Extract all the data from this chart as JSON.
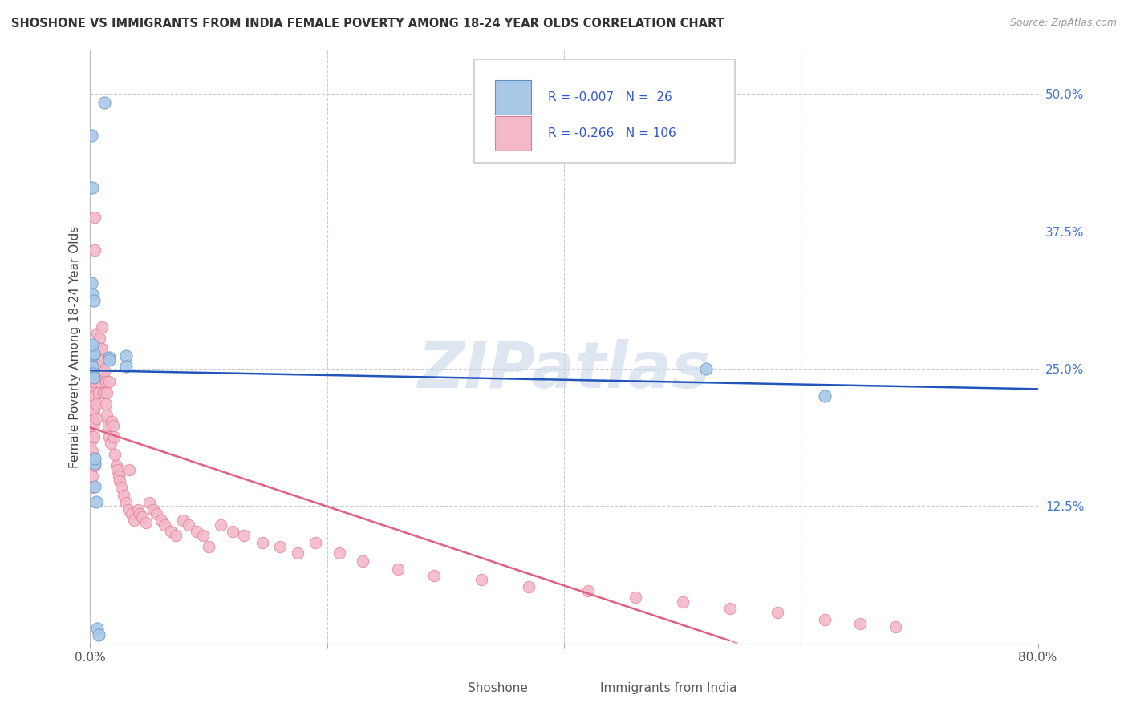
{
  "title": "SHOSHONE VS IMMIGRANTS FROM INDIA FEMALE POVERTY AMONG 18-24 YEAR OLDS CORRELATION CHART",
  "source": "Source: ZipAtlas.com",
  "ylabel": "Female Poverty Among 18-24 Year Olds",
  "xlim": [
    0.0,
    0.8
  ],
  "ylim": [
    0.0,
    0.54
  ],
  "grid_color": "#cccccc",
  "background_color": "#ffffff",
  "shoshone_color": "#a8c8e8",
  "india_color": "#f4b8c8",
  "shoshone_edge": "#6090c0",
  "india_edge": "#e08098",
  "regression_blue": "#2255bb",
  "regression_pink": "#e06080",
  "watermark": "ZIPatlas",
  "watermark_color": "#c8d8e8",
  "legend_text_color": "#3355cc",
  "tick_color": "#4477cc",
  "shoshone_x": [
    0.001,
    0.012,
    0.002,
    0.001,
    0.002,
    0.003,
    0.001,
    0.002,
    0.003,
    0.002,
    0.002,
    0.002,
    0.003,
    0.003,
    0.004,
    0.004,
    0.016,
    0.016,
    0.03,
    0.03,
    0.004,
    0.005,
    0.52,
    0.62,
    0.006,
    0.007
  ],
  "shoshone_y": [
    0.462,
    0.492,
    0.415,
    0.328,
    0.318,
    0.312,
    0.268,
    0.262,
    0.264,
    0.272,
    0.252,
    0.246,
    0.242,
    0.166,
    0.164,
    0.168,
    0.26,
    0.258,
    0.262,
    0.252,
    0.143,
    0.129,
    0.25,
    0.225,
    0.014,
    0.008
  ],
  "india_x": [
    0.001,
    0.001,
    0.001,
    0.001,
    0.001,
    0.001,
    0.002,
    0.002,
    0.002,
    0.002,
    0.002,
    0.002,
    0.002,
    0.002,
    0.002,
    0.002,
    0.003,
    0.003,
    0.003,
    0.003,
    0.003,
    0.004,
    0.004,
    0.004,
    0.004,
    0.005,
    0.005,
    0.005,
    0.005,
    0.006,
    0.006,
    0.006,
    0.007,
    0.007,
    0.008,
    0.008,
    0.008,
    0.009,
    0.009,
    0.01,
    0.01,
    0.01,
    0.011,
    0.011,
    0.012,
    0.012,
    0.013,
    0.013,
    0.014,
    0.014,
    0.015,
    0.016,
    0.016,
    0.017,
    0.018,
    0.019,
    0.02,
    0.021,
    0.022,
    0.023,
    0.024,
    0.025,
    0.026,
    0.028,
    0.03,
    0.032,
    0.033,
    0.035,
    0.037,
    0.04,
    0.042,
    0.044,
    0.047,
    0.05,
    0.053,
    0.056,
    0.06,
    0.063,
    0.068,
    0.072,
    0.078,
    0.083,
    0.09,
    0.095,
    0.1,
    0.11,
    0.12,
    0.13,
    0.145,
    0.16,
    0.175,
    0.19,
    0.21,
    0.23,
    0.26,
    0.29,
    0.33,
    0.37,
    0.42,
    0.46,
    0.5,
    0.54,
    0.58,
    0.62,
    0.65,
    0.68
  ],
  "india_y": [
    0.23,
    0.215,
    0.205,
    0.198,
    0.185,
    0.17,
    0.242,
    0.232,
    0.225,
    0.212,
    0.2,
    0.188,
    0.175,
    0.162,
    0.152,
    0.142,
    0.238,
    0.225,
    0.212,
    0.2,
    0.188,
    0.388,
    0.358,
    0.238,
    0.162,
    0.253,
    0.242,
    0.218,
    0.205,
    0.282,
    0.258,
    0.248,
    0.242,
    0.228,
    0.278,
    0.258,
    0.238,
    0.268,
    0.248,
    0.288,
    0.268,
    0.248,
    0.228,
    0.242,
    0.248,
    0.228,
    0.238,
    0.218,
    0.228,
    0.208,
    0.198,
    0.188,
    0.238,
    0.182,
    0.202,
    0.198,
    0.188,
    0.172,
    0.162,
    0.158,
    0.152,
    0.148,
    0.142,
    0.135,
    0.128,
    0.122,
    0.158,
    0.118,
    0.112,
    0.122,
    0.118,
    0.115,
    0.11,
    0.128,
    0.122,
    0.118,
    0.112,
    0.108,
    0.102,
    0.098,
    0.112,
    0.108,
    0.102,
    0.098,
    0.088,
    0.108,
    0.102,
    0.098,
    0.092,
    0.088,
    0.082,
    0.092,
    0.082,
    0.075,
    0.068,
    0.062,
    0.058,
    0.052,
    0.048,
    0.042,
    0.038,
    0.032,
    0.028,
    0.022,
    0.018,
    0.015
  ]
}
